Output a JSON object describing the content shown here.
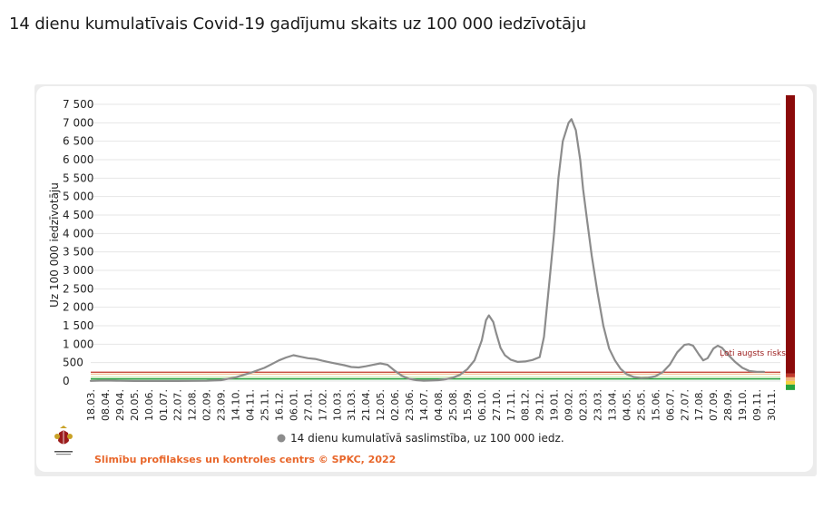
{
  "page": {
    "title": "14 dienu kumulatīvais Covid-19 gadījumu skaits uz 100 000 iedzīvotāju"
  },
  "colors": {
    "series": "#8c8c8c",
    "grid": "#e6e6e6",
    "risk_bar": "#8b0a0a",
    "risk_line": "#c0392b",
    "threshold_orange": "#f0b27a",
    "threshold_green": "#27a33d",
    "source": "#e8662a"
  },
  "chart_data": {
    "type": "line",
    "title": "",
    "ylabel": "Uz 100 000 iedzīvotāju",
    "xlabel": "",
    "ylim": [
      0,
      7500
    ],
    "yticks": [
      0,
      500,
      1000,
      1500,
      2000,
      2500,
      3000,
      3500,
      4000,
      4500,
      5000,
      5500,
      6000,
      6500,
      7000,
      7500
    ],
    "ytick_labels": [
      "0",
      "500",
      "1 000",
      "1 500",
      "2 000",
      "2 500",
      "3 000",
      "3 500",
      "4 000",
      "4 500",
      "5 000",
      "5 500",
      "6 000",
      "6 500",
      "7 000",
      "7 500"
    ],
    "categories": [
      "18.03.",
      "08.04.",
      "29.04.",
      "20.05.",
      "10.06.",
      "01.07.",
      "22.07.",
      "12.08.",
      "02.09.",
      "23.09.",
      "14.10.",
      "04.11.",
      "25.11.",
      "16.12.",
      "06.01.",
      "27.01.",
      "17.02.",
      "10.03.",
      "31.03.",
      "21.04.",
      "12.05.",
      "02.06.",
      "23.06.",
      "14.07.",
      "04.08.",
      "25.08.",
      "15.09.",
      "06.10.",
      "27.10.",
      "17.11.",
      "08.12.",
      "29.12.",
      "19.01.",
      "09.02.",
      "02.03.",
      "23.03.",
      "13.04.",
      "04.05.",
      "25.05.",
      "15.06.",
      "06.07.",
      "27.07.",
      "17.08.",
      "07.09.",
      "28.09.",
      "19.10.",
      "09.11.",
      "30.11."
    ],
    "series": [
      {
        "name": "14 dienu kumulatīvā saslimstība, uz 100 000 iedz.",
        "values": [
          [
            0,
            5
          ],
          [
            1,
            15
          ],
          [
            2,
            8
          ],
          [
            3,
            3
          ],
          [
            4,
            2
          ],
          [
            5,
            2
          ],
          [
            6,
            3
          ],
          [
            7,
            5
          ],
          [
            8,
            8
          ],
          [
            9,
            25
          ],
          [
            10,
            100
          ],
          [
            11,
            220
          ],
          [
            12,
            360
          ],
          [
            12.5,
            460
          ],
          [
            13,
            560
          ],
          [
            13.5,
            640
          ],
          [
            14,
            700
          ],
          [
            14.5,
            660
          ],
          [
            15,
            620
          ],
          [
            15.5,
            600
          ],
          [
            16,
            550
          ],
          [
            16.5,
            510
          ],
          [
            17,
            470
          ],
          [
            17.5,
            430
          ],
          [
            18,
            380
          ],
          [
            18.5,
            370
          ],
          [
            19,
            400
          ],
          [
            19.5,
            440
          ],
          [
            20,
            480
          ],
          [
            20.5,
            440
          ],
          [
            21,
            280
          ],
          [
            21.5,
            140
          ],
          [
            22,
            60
          ],
          [
            22.5,
            25
          ],
          [
            23,
            10
          ],
          [
            23.5,
            15
          ],
          [
            24,
            25
          ],
          [
            24.5,
            50
          ],
          [
            25,
            90
          ],
          [
            25.5,
            170
          ],
          [
            26,
            320
          ],
          [
            26.5,
            560
          ],
          [
            27,
            1100
          ],
          [
            27.3,
            1650
          ],
          [
            27.5,
            1780
          ],
          [
            27.8,
            1600
          ],
          [
            28,
            1300
          ],
          [
            28.3,
            900
          ],
          [
            28.6,
            700
          ],
          [
            29,
            580
          ],
          [
            29.5,
            520
          ],
          [
            30,
            530
          ],
          [
            30.5,
            570
          ],
          [
            31,
            650
          ],
          [
            31.3,
            1200
          ],
          [
            31.6,
            2400
          ],
          [
            32,
            4000
          ],
          [
            32.3,
            5500
          ],
          [
            32.6,
            6500
          ],
          [
            33,
            7000
          ],
          [
            33.2,
            7100
          ],
          [
            33.5,
            6800
          ],
          [
            33.8,
            6000
          ],
          [
            34,
            5200
          ],
          [
            34.3,
            4300
          ],
          [
            34.6,
            3400
          ],
          [
            35,
            2400
          ],
          [
            35.4,
            1500
          ],
          [
            35.8,
            880
          ],
          [
            36.2,
            560
          ],
          [
            36.6,
            330
          ],
          [
            37,
            190
          ],
          [
            37.5,
            110
          ],
          [
            38,
            80
          ],
          [
            38.5,
            90
          ],
          [
            39,
            130
          ],
          [
            39.5,
            240
          ],
          [
            40,
            450
          ],
          [
            40.5,
            780
          ],
          [
            41,
            980
          ],
          [
            41.3,
            1000
          ],
          [
            41.6,
            960
          ],
          [
            42,
            720
          ],
          [
            42.3,
            560
          ],
          [
            42.6,
            620
          ],
          [
            43,
            880
          ],
          [
            43.3,
            960
          ],
          [
            43.6,
            900
          ],
          [
            44,
            720
          ],
          [
            44.5,
            520
          ],
          [
            45,
            360
          ],
          [
            45.5,
            270
          ],
          [
            46,
            250
          ],
          [
            46.5,
            250
          ]
        ]
      }
    ],
    "annotations": [
      {
        "text": "Ļoti augsts risks"
      }
    ],
    "legend": {
      "position": "bottom",
      "label": "14 dienu kumulatīvā saslimstība, uz 100 000 iedz."
    },
    "grid": true
  },
  "source": {
    "text": "Slimību profilakses un kontroles centrs © SPKC, 2022"
  },
  "logo": {
    "icon": "coat-of-arms-icon",
    "text": "Slimību profilakses un kontroles centrs"
  }
}
